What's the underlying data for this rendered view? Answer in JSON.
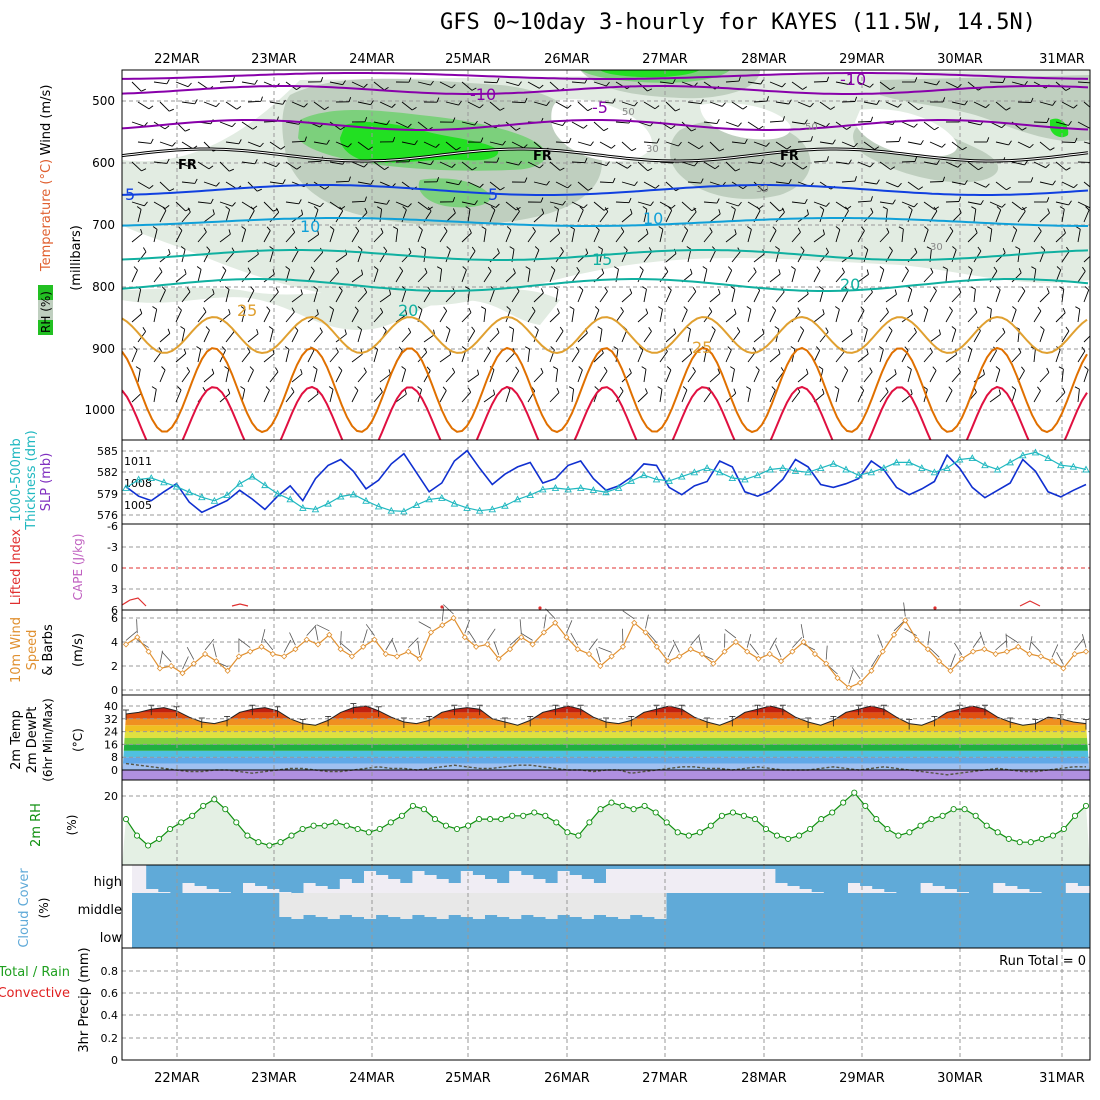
{
  "title": "GFS 0~10day 3-hourly for KAYES (11.5W, 14.5N)",
  "dates": [
    "22MAR",
    "23MAR",
    "24MAR",
    "25MAR",
    "26MAR",
    "27MAR",
    "28MAR",
    "29MAR",
    "30MAR",
    "31MAR"
  ],
  "colors": {
    "rh_green": "#00e000",
    "rh_gray": "#b8c8b8",
    "rh_light": "#dfeadf",
    "wind": "#000000",
    "purple": "#8800aa",
    "blue": "#1040e0",
    "cyan": "#10a0d8",
    "teal": "#10b0a0",
    "orange": "#e0a030",
    "dark_orange": "#e07000",
    "red": "#e01040",
    "slp": "#1030d0",
    "thickness": "#20b8c0",
    "lifted": "#e03030",
    "cape": "#c060c0",
    "wind10": "#e09030",
    "rh2m": "#109010",
    "cloud": "#60aad8",
    "cloud_gray": "#e8e8e8",
    "precip_total": "#20a020",
    "precip_conv": "#e02020"
  },
  "chart_data": [
    {
      "type": "contour",
      "name": "upper-air",
      "axis_title": "(millibars)",
      "left_labels": [
        "RH (%)",
        "Temperature (°C)",
        "Wind (m/s)"
      ],
      "levels": [
        "500",
        "600",
        "700",
        "800",
        "900",
        "1000"
      ],
      "contour_labels": [
        "-10",
        "-10",
        "-5",
        "5",
        "5",
        "10",
        "10",
        "15",
        "20",
        "20",
        "25",
        "25",
        "FR",
        "FR",
        "FR",
        "30",
        "30",
        "50",
        "50",
        "30"
      ]
    },
    {
      "type": "line",
      "name": "slp-thickness",
      "left_labels": [
        "1000-500mb",
        "Thickness (dm)",
        "SLP (mb)"
      ],
      "yticks_thickness": [
        "585",
        "582",
        "579",
        "576"
      ],
      "yticks_slp": [
        "1011",
        "1008",
        "1005"
      ],
      "series": [
        {
          "name": "SLP (mb)",
          "values": [
            1007.5,
            1006.2,
            1005.6,
            1006.8,
            1007.9,
            1005.4,
            1004.0,
            1004.8,
            1005.6,
            1007.0,
            1005.8,
            1004.4,
            1006.2,
            1007.6,
            1005.6,
            1008.6,
            1010.4,
            1011.2,
            1009.6,
            1007.2,
            1008.4,
            1010.6,
            1012.0,
            1009.4,
            1006.8,
            1008.0,
            1011.0,
            1012.4,
            1010.0,
            1007.8,
            1009.2,
            1010.2,
            1010.8,
            1008.0,
            1008.6,
            1010.4,
            1011.0,
            1008.6,
            1007.0,
            1007.6,
            1008.8,
            1010.6,
            1010.4,
            1007.4,
            1006.4,
            1007.6,
            1008.2,
            1011.0,
            1010.2,
            1006.8,
            1006.2,
            1006.9,
            1008.5,
            1011.2,
            1010.2,
            1007.8,
            1007.4,
            1007.9,
            1008.6,
            1011.0,
            1009.8,
            1007.4,
            1006.4,
            1007.2,
            1008.2,
            1011.8,
            1010.0,
            1007.4,
            1006.0,
            1007.0,
            1008.0,
            1011.2,
            1009.6,
            1006.8,
            1006.1,
            1007.0,
            1007.8
          ]
        },
        {
          "name": "Thickness (dm)",
          "values": [
            579.8,
            581.0,
            581.2,
            580.6,
            580.0,
            579.2,
            578.5,
            578.0,
            578.8,
            580.4,
            581.4,
            580.2,
            579.0,
            578.2,
            577.0,
            576.8,
            577.6,
            578.6,
            578.9,
            578.0,
            577.2,
            576.6,
            576.5,
            577.4,
            578.2,
            578.4,
            577.6,
            577.0,
            576.6,
            576.8,
            577.3,
            578.2,
            578.8,
            579.6,
            579.8,
            579.6,
            579.8,
            579.5,
            579.2,
            579.8,
            580.8,
            581.6,
            581.0,
            580.8,
            581.4,
            582.0,
            582.6,
            582.0,
            581.2,
            581.0,
            581.6,
            582.4,
            582.6,
            582.2,
            582.0,
            582.6,
            583.2,
            582.4,
            581.6,
            582.0,
            582.6,
            583.4,
            583.4,
            582.6,
            582.0,
            582.6,
            583.8,
            584.0,
            583.0,
            582.4,
            583.4,
            584.4,
            584.8,
            584.0,
            583.0,
            582.8,
            582.4
          ]
        }
      ]
    },
    {
      "type": "line",
      "name": "lifted-cape",
      "left_labels": [
        "Lifted Index",
        "CAPE (J/kg)"
      ],
      "yticks": [
        "-6",
        "-3",
        "0",
        "3",
        "6"
      ],
      "series": [
        {
          "name": "Lifted Index",
          "values": [
            5.8,
            5.2,
            4.8,
            5.6,
            6.0
          ]
        }
      ]
    },
    {
      "type": "line",
      "name": "wind10m",
      "left_labels": [
        "10m Wind",
        "Speed",
        "& Barbs",
        "(m/s)"
      ],
      "yticks": [
        "6",
        "4",
        "2",
        "0"
      ],
      "series": [
        {
          "name": "10m Wind Speed (m/s)",
          "values": [
            3.8,
            4.4,
            3.2,
            1.8,
            2.0,
            1.4,
            2.2,
            3.0,
            2.4,
            1.6,
            2.8,
            3.2,
            3.6,
            3.0,
            2.8,
            3.4,
            4.2,
            3.8,
            4.6,
            3.4,
            2.8,
            3.6,
            4.2,
            3.0,
            2.8,
            3.2,
            2.6,
            4.8,
            5.4,
            6.0,
            4.4,
            3.6,
            3.8,
            2.6,
            3.4,
            4.4,
            3.8,
            4.8,
            5.6,
            4.4,
            3.4,
            3.0,
            2.0,
            2.8,
            3.6,
            5.6,
            4.8,
            3.6,
            2.4,
            2.8,
            3.4,
            3.0,
            2.2,
            3.2,
            4.0,
            3.2,
            2.6,
            3.0,
            2.4,
            3.2,
            4.0,
            3.0,
            2.2,
            1.0,
            0.2,
            0.6,
            1.6,
            3.2,
            4.6,
            5.8,
            4.2,
            3.4,
            2.4,
            1.6,
            2.6,
            3.2,
            3.4,
            3.0,
            3.2,
            3.6,
            3.0,
            2.8,
            2.4,
            1.8,
            3.0,
            3.2
          ]
        }
      ]
    },
    {
      "type": "area",
      "name": "temp2m",
      "left_labels": [
        "2m Temp",
        "2m DewPt",
        "(6hr Min/Max)",
        "(°C)"
      ],
      "yticks": [
        "40",
        "32",
        "24",
        "16",
        "8",
        "0"
      ],
      "series": [
        {
          "name": "2m Temp (°C)",
          "values": [
            35,
            36,
            38,
            39,
            37,
            33,
            30,
            29,
            31,
            36,
            38,
            39,
            37,
            32,
            29,
            28,
            31,
            36,
            39,
            40,
            37,
            33,
            30,
            29,
            31,
            36,
            38,
            39,
            38,
            32,
            30,
            28,
            31,
            36,
            38,
            40,
            38,
            33,
            30,
            29,
            31,
            36,
            38,
            40,
            38,
            33,
            30,
            28,
            31,
            36,
            38,
            40,
            38,
            33,
            30,
            28,
            31,
            36,
            38,
            40,
            38,
            33,
            29,
            28,
            31,
            36,
            38,
            40,
            38,
            33,
            30,
            28,
            29,
            33,
            32,
            30,
            29
          ]
        },
        {
          "name": "2m DewPt (°C)",
          "values": [
            4,
            3,
            2,
            1,
            0,
            -1,
            -1,
            0,
            0,
            -1,
            -2,
            -1,
            0,
            1,
            1,
            0,
            -1,
            -1,
            0,
            1,
            2,
            1,
            1,
            0,
            1,
            2,
            3,
            2,
            1,
            1,
            2,
            3,
            3,
            2,
            1,
            0,
            0,
            -1,
            0,
            0,
            -2,
            -1,
            0,
            1,
            2,
            2,
            1,
            1,
            0,
            1,
            2,
            1,
            0,
            0,
            0,
            1,
            2,
            1,
            0,
            1,
            2,
            1,
            0,
            -1,
            -2,
            -3,
            -2,
            -1,
            0,
            1,
            0,
            -1,
            -1,
            0,
            1,
            2,
            2
          ]
        }
      ]
    },
    {
      "type": "line",
      "name": "rh2m",
      "left_labels": [
        "2m RH",
        "(%)"
      ],
      "yticks": [
        "20"
      ],
      "series": [
        {
          "name": "2m RH (%)",
          "values": [
            13,
            8,
            5,
            7,
            10,
            12,
            14,
            17,
            19,
            16,
            12,
            8,
            6,
            5,
            6,
            8,
            10,
            11,
            11,
            12,
            11,
            10,
            9,
            10,
            12,
            14,
            17,
            16,
            13,
            11,
            10,
            11,
            13,
            13,
            13,
            14,
            14,
            15,
            14,
            12,
            9,
            8,
            12,
            16,
            18,
            17,
            16,
            17,
            15,
            12,
            9,
            8,
            9,
            11,
            14,
            15,
            14,
            13,
            10,
            8,
            7,
            8,
            10,
            13,
            15,
            18,
            21,
            17,
            13,
            10,
            8,
            9,
            11,
            13,
            14,
            16,
            16,
            14,
            11,
            9,
            7,
            6,
            6,
            7,
            8,
            10,
            14,
            17
          ]
        }
      ]
    },
    {
      "type": "bar",
      "name": "cloud-cover",
      "left_labels": [
        "Cloud Cover",
        "(%)"
      ],
      "rows": [
        "high",
        "middle",
        "low"
      ]
    },
    {
      "type": "bar",
      "name": "precip",
      "left_labels": [
        "Total / Rain",
        "Convective",
        "3hr Precip (mm)"
      ],
      "yticks": [
        "0.8",
        "0.6",
        "0.4",
        "0.2",
        "0"
      ],
      "run_total": "Run Total = 0",
      "values": []
    }
  ]
}
